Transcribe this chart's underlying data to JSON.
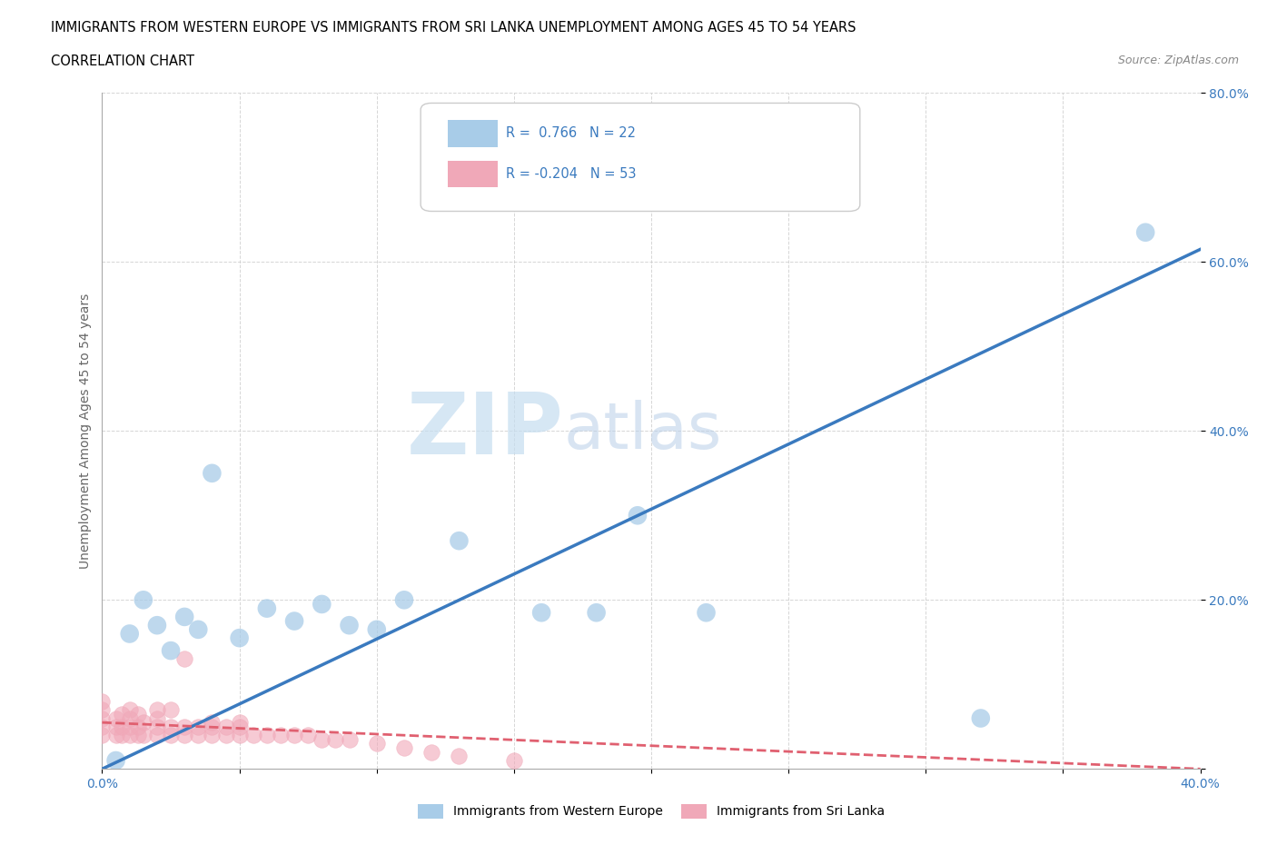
{
  "title_line1": "IMMIGRANTS FROM WESTERN EUROPE VS IMMIGRANTS FROM SRI LANKA UNEMPLOYMENT AMONG AGES 45 TO 54 YEARS",
  "title_line2": "CORRELATION CHART",
  "source_text": "Source: ZipAtlas.com",
  "ylabel": "Unemployment Among Ages 45 to 54 years",
  "xlim": [
    0.0,
    0.4
  ],
  "ylim": [
    0.0,
    0.8
  ],
  "xticks": [
    0.0,
    0.05,
    0.1,
    0.15,
    0.2,
    0.25,
    0.3,
    0.35,
    0.4
  ],
  "yticks": [
    0.0,
    0.2,
    0.4,
    0.6,
    0.8
  ],
  "xtick_labels": [
    "0.0%",
    "",
    "",
    "",
    "",
    "",
    "",
    "",
    "40.0%"
  ],
  "ytick_labels": [
    "",
    "20.0%",
    "40.0%",
    "60.0%",
    "80.0%"
  ],
  "blue_R": 0.766,
  "blue_N": 22,
  "pink_R": -0.204,
  "pink_N": 53,
  "blue_color": "#a8cce8",
  "pink_color": "#f0a8b8",
  "blue_line_color": "#3a7abf",
  "pink_line_color": "#e06070",
  "watermark_zip": "ZIP",
  "watermark_atlas": "atlas",
  "background_color": "#ffffff",
  "blue_scatter_x": [
    0.005,
    0.01,
    0.015,
    0.02,
    0.025,
    0.03,
    0.035,
    0.04,
    0.05,
    0.06,
    0.07,
    0.08,
    0.09,
    0.1,
    0.11,
    0.13,
    0.16,
    0.18,
    0.195,
    0.22,
    0.32,
    0.38
  ],
  "blue_scatter_y": [
    0.01,
    0.16,
    0.2,
    0.17,
    0.14,
    0.18,
    0.165,
    0.35,
    0.155,
    0.19,
    0.175,
    0.195,
    0.17,
    0.165,
    0.2,
    0.27,
    0.185,
    0.185,
    0.3,
    0.185,
    0.06,
    0.635
  ],
  "pink_scatter_x": [
    0.0,
    0.0,
    0.0,
    0.0,
    0.0,
    0.005,
    0.005,
    0.005,
    0.007,
    0.007,
    0.007,
    0.01,
    0.01,
    0.01,
    0.01,
    0.013,
    0.013,
    0.013,
    0.015,
    0.015,
    0.02,
    0.02,
    0.02,
    0.02,
    0.025,
    0.025,
    0.025,
    0.03,
    0.03,
    0.03,
    0.035,
    0.035,
    0.04,
    0.04,
    0.04,
    0.045,
    0.045,
    0.05,
    0.05,
    0.05,
    0.055,
    0.06,
    0.065,
    0.07,
    0.075,
    0.08,
    0.085,
    0.09,
    0.1,
    0.11,
    0.12,
    0.13,
    0.15
  ],
  "pink_scatter_y": [
    0.04,
    0.05,
    0.06,
    0.07,
    0.08,
    0.04,
    0.05,
    0.06,
    0.04,
    0.05,
    0.065,
    0.04,
    0.05,
    0.06,
    0.07,
    0.04,
    0.05,
    0.065,
    0.04,
    0.055,
    0.04,
    0.05,
    0.06,
    0.07,
    0.04,
    0.05,
    0.07,
    0.04,
    0.05,
    0.13,
    0.04,
    0.05,
    0.04,
    0.05,
    0.055,
    0.04,
    0.05,
    0.04,
    0.05,
    0.055,
    0.04,
    0.04,
    0.04,
    0.04,
    0.04,
    0.035,
    0.035,
    0.035,
    0.03,
    0.025,
    0.02,
    0.015,
    0.01
  ],
  "blue_line_x": [
    0.0,
    0.4
  ],
  "blue_line_y": [
    0.0,
    0.615
  ],
  "pink_line_x": [
    0.0,
    0.4
  ],
  "pink_line_y": [
    0.055,
    0.0
  ],
  "legend_bottom_labels": [
    "Immigrants from Western Europe",
    "Immigrants from Sri Lanka"
  ]
}
